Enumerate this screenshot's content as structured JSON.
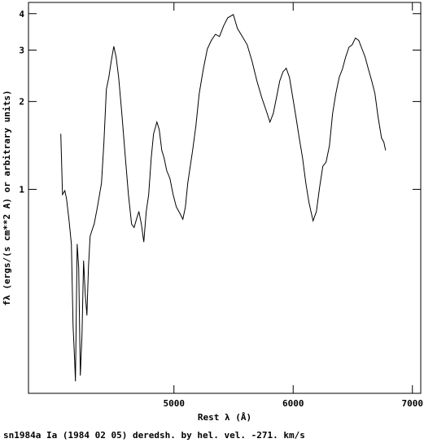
{
  "chart_data": {
    "type": "line",
    "log_y": true,
    "x_label": "Rest λ (Å)",
    "y_label": "fλ (ergs/(s cm**2 A) or arbitrary units)",
    "caption": "sn1984a Ia (1984 02 05) deredsh. by hel. vel.  -271. km/s",
    "xlim": [
      3780,
      7070
    ],
    "xticks": [
      5000,
      6000,
      7000
    ],
    "ylim": [
      0.2,
      4.37
    ],
    "yticks": [
      1,
      2,
      3,
      4
    ],
    "series": [
      {
        "color": "#000000",
        "x": [
          4051,
          4065,
          4085,
          4099,
          4119,
          4140,
          4154,
          4167,
          4174,
          4188,
          4201,
          4215,
          4229,
          4242,
          4256,
          4270,
          4283,
          4297,
          4311,
          4331,
          4358,
          4392,
          4413,
          4433,
          4454,
          4474,
          4495,
          4515,
          4536,
          4563,
          4590,
          4618,
          4645,
          4666,
          4686,
          4706,
          4727,
          4747,
          4768,
          4788,
          4809,
          4829,
          4857,
          4877,
          4898,
          4918,
          4939,
          4966,
          4993,
          5020,
          5048,
          5075,
          5096,
          5116,
          5137,
          5157,
          5184,
          5212,
          5246,
          5280,
          5314,
          5348,
          5382,
          5416,
          5451,
          5498,
          5532,
          5573,
          5614,
          5655,
          5696,
          5737,
          5778,
          5805,
          5833,
          5860,
          5887,
          5915,
          5942,
          5969,
          5997,
          6024,
          6051,
          6079,
          6106,
          6133,
          6167,
          6195,
          6222,
          6249,
          6276,
          6304,
          6331,
          6358,
          6386,
          6413,
          6440,
          6468,
          6495,
          6522,
          6550,
          6577,
          6604,
          6631,
          6659,
          6686,
          6713,
          6741,
          6761,
          6775
        ],
        "values": [
          1.55,
          0.96,
          0.99,
          0.93,
          0.79,
          0.65,
          0.34,
          0.26,
          0.22,
          0.65,
          0.54,
          0.23,
          0.32,
          0.57,
          0.44,
          0.37,
          0.54,
          0.69,
          0.72,
          0.76,
          0.87,
          1.05,
          1.45,
          2.2,
          2.42,
          2.75,
          3.09,
          2.84,
          2.42,
          1.82,
          1.32,
          0.96,
          0.76,
          0.74,
          0.79,
          0.84,
          0.76,
          0.66,
          0.84,
          0.96,
          1.28,
          1.55,
          1.7,
          1.6,
          1.36,
          1.28,
          1.16,
          1.09,
          0.96,
          0.87,
          0.83,
          0.79,
          0.87,
          1.05,
          1.2,
          1.36,
          1.65,
          2.13,
          2.58,
          3.03,
          3.24,
          3.4,
          3.34,
          3.63,
          3.87,
          3.97,
          3.56,
          3.34,
          3.13,
          2.75,
          2.35,
          2.06,
          1.84,
          1.7,
          1.82,
          2.06,
          2.35,
          2.53,
          2.6,
          2.42,
          2.06,
          1.76,
          1.5,
          1.28,
          1.05,
          0.9,
          0.78,
          0.84,
          1.02,
          1.2,
          1.24,
          1.41,
          1.82,
          2.13,
          2.42,
          2.58,
          2.84,
          3.07,
          3.13,
          3.3,
          3.24,
          3.03,
          2.84,
          2.58,
          2.35,
          2.13,
          1.76,
          1.5,
          1.45,
          1.36
        ]
      }
    ]
  }
}
